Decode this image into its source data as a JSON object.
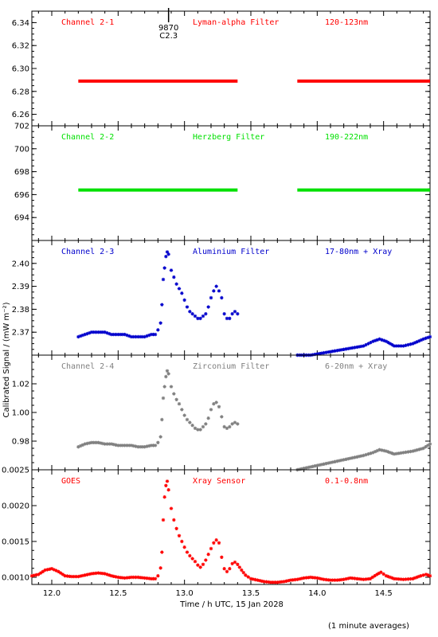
{
  "chart_data": {
    "type": "scatter",
    "xlabel": "Time / h UTC, 15 Jan 2028",
    "ylabel": "Calibrated Signal / (mW m⁻²)",
    "footnote": "(1 minute averages)",
    "xlim": [
      11.85,
      14.85
    ],
    "x_ticks": [
      "12.0",
      "12.5",
      "13.0",
      "13.5",
      "14.0",
      "14.5"
    ],
    "x_tick_values": [
      12.0,
      12.5,
      13.0,
      13.5,
      14.0,
      14.5
    ],
    "event_marker": {
      "x": 12.88,
      "labels": [
        "9870",
        "C2.3"
      ]
    },
    "panels": [
      {
        "channel": "Channel 2-1",
        "filter": "Lyman-alpha Filter",
        "band": "120-123nm",
        "color": "#ff0000",
        "ylim": [
          6.25,
          6.35
        ],
        "y_ticks": [
          "6.26",
          "6.28",
          "6.30",
          "6.32",
          "6.34"
        ],
        "y_tick_values": [
          6.26,
          6.28,
          6.3,
          6.32,
          6.34
        ],
        "series": [
          [
            12.2,
            6.289
          ],
          [
            13.4,
            6.289
          ],
          null,
          [
            13.85,
            6.289
          ],
          [
            14.85,
            6.289
          ]
        ],
        "style": "dense"
      },
      {
        "channel": "Channel 2-2",
        "filter": "Herzberg Filter",
        "band": "190-222nm",
        "color": "#00e000",
        "ylim": [
          692.0,
          702.0
        ],
        "y_ticks": [
          "694",
          "696",
          "698",
          "700",
          "702"
        ],
        "y_tick_values": [
          694,
          696,
          698,
          700,
          702
        ],
        "series": [
          [
            12.2,
            696.4
          ],
          [
            13.4,
            696.4
          ],
          null,
          [
            13.85,
            696.4
          ],
          [
            14.85,
            696.4
          ]
        ],
        "style": "dense"
      },
      {
        "channel": "Channel 2-3",
        "filter": "Aluminium Filter",
        "band": "17-80nm + Xray",
        "color": "#0000cc",
        "ylim": [
          2.36,
          2.41
        ],
        "y_ticks": [
          "2.37",
          "2.38",
          "2.39",
          "2.40"
        ],
        "y_tick_values": [
          2.37,
          2.38,
          2.39,
          2.4
        ],
        "series": [
          [
            12.2,
            2.368
          ],
          [
            12.25,
            2.369
          ],
          [
            12.3,
            2.37
          ],
          [
            12.35,
            2.37
          ],
          [
            12.4,
            2.37
          ],
          [
            12.45,
            2.369
          ],
          [
            12.5,
            2.369
          ],
          [
            12.55,
            2.369
          ],
          [
            12.6,
            2.368
          ],
          [
            12.65,
            2.368
          ],
          [
            12.7,
            2.368
          ],
          [
            12.75,
            2.369
          ],
          [
            12.78,
            2.369
          ],
          [
            12.8,
            2.371
          ],
          [
            12.82,
            2.374
          ],
          [
            12.83,
            2.382
          ],
          [
            12.84,
            2.393
          ],
          [
            12.85,
            2.398
          ],
          [
            12.86,
            2.403
          ],
          [
            12.87,
            2.405
          ],
          [
            12.88,
            2.404
          ],
          [
            12.9,
            2.397
          ],
          [
            12.92,
            2.394
          ],
          [
            12.94,
            2.391
          ],
          [
            12.96,
            2.389
          ],
          [
            12.98,
            2.387
          ],
          [
            13.0,
            2.384
          ],
          [
            13.02,
            2.381
          ],
          [
            13.04,
            2.379
          ],
          [
            13.06,
            2.378
          ],
          [
            13.08,
            2.377
          ],
          [
            13.1,
            2.376
          ],
          [
            13.12,
            2.376
          ],
          [
            13.14,
            2.377
          ],
          [
            13.16,
            2.378
          ],
          [
            13.18,
            2.381
          ],
          [
            13.2,
            2.385
          ],
          [
            13.22,
            2.388
          ],
          [
            13.24,
            2.39
          ],
          [
            13.26,
            2.388
          ],
          [
            13.28,
            2.385
          ],
          [
            13.3,
            2.378
          ],
          [
            13.32,
            2.376
          ],
          [
            13.34,
            2.376
          ],
          [
            13.36,
            2.378
          ],
          [
            13.38,
            2.379
          ],
          [
            13.4,
            2.378
          ],
          null,
          [
            13.85,
            2.36
          ],
          [
            13.95,
            2.36
          ],
          [
            14.05,
            2.361
          ],
          [
            14.15,
            2.362
          ],
          [
            14.25,
            2.363
          ],
          [
            14.35,
            2.364
          ],
          [
            14.42,
            2.366
          ],
          [
            14.47,
            2.367
          ],
          [
            14.52,
            2.366
          ],
          [
            14.58,
            2.364
          ],
          [
            14.65,
            2.364
          ],
          [
            14.72,
            2.365
          ],
          [
            14.8,
            2.367
          ],
          [
            14.85,
            2.368
          ]
        ],
        "style": "points"
      },
      {
        "channel": "Channel 2-4",
        "filter": "Zirconium Filter",
        "band": "6-20nm + Xray",
        "color": "#808080",
        "ylim": [
          0.96,
          1.04
        ],
        "y_ticks": [
          "0.98",
          "1.00",
          "1.02"
        ],
        "y_tick_values": [
          0.98,
          1.0,
          1.02
        ],
        "series": [
          [
            12.2,
            0.976
          ],
          [
            12.25,
            0.978
          ],
          [
            12.3,
            0.979
          ],
          [
            12.35,
            0.979
          ],
          [
            12.4,
            0.978
          ],
          [
            12.45,
            0.978
          ],
          [
            12.5,
            0.977
          ],
          [
            12.55,
            0.977
          ],
          [
            12.6,
            0.977
          ],
          [
            12.65,
            0.976
          ],
          [
            12.7,
            0.976
          ],
          [
            12.75,
            0.977
          ],
          [
            12.78,
            0.977
          ],
          [
            12.8,
            0.979
          ],
          [
            12.82,
            0.983
          ],
          [
            12.83,
            0.995
          ],
          [
            12.84,
            1.01
          ],
          [
            12.85,
            1.018
          ],
          [
            12.86,
            1.025
          ],
          [
            12.87,
            1.029
          ],
          [
            12.88,
            1.027
          ],
          [
            12.9,
            1.018
          ],
          [
            12.92,
            1.013
          ],
          [
            12.94,
            1.009
          ],
          [
            12.96,
            1.006
          ],
          [
            12.98,
            1.002
          ],
          [
            13.0,
            0.998
          ],
          [
            13.02,
            0.995
          ],
          [
            13.04,
            0.993
          ],
          [
            13.06,
            0.991
          ],
          [
            13.08,
            0.989
          ],
          [
            13.1,
            0.988
          ],
          [
            13.12,
            0.988
          ],
          [
            13.14,
            0.99
          ],
          [
            13.16,
            0.992
          ],
          [
            13.18,
            0.996
          ],
          [
            13.2,
            1.002
          ],
          [
            13.22,
            1.006
          ],
          [
            13.24,
            1.007
          ],
          [
            13.26,
            1.004
          ],
          [
            13.28,
            0.997
          ],
          [
            13.3,
            0.99
          ],
          [
            13.32,
            0.989
          ],
          [
            13.34,
            0.99
          ],
          [
            13.36,
            0.992
          ],
          [
            13.38,
            0.993
          ],
          [
            13.4,
            0.992
          ],
          null,
          [
            13.85,
            0.96
          ],
          [
            13.95,
            0.962
          ],
          [
            14.05,
            0.964
          ],
          [
            14.15,
            0.966
          ],
          [
            14.25,
            0.968
          ],
          [
            14.35,
            0.97
          ],
          [
            14.42,
            0.972
          ],
          [
            14.47,
            0.974
          ],
          [
            14.52,
            0.973
          ],
          [
            14.58,
            0.971
          ],
          [
            14.65,
            0.972
          ],
          [
            14.72,
            0.973
          ],
          [
            14.8,
            0.975
          ],
          [
            14.85,
            0.978
          ]
        ],
        "style": "points"
      },
      {
        "channel": "GOES",
        "filter": "Xray Sensor",
        "band": "0.1-0.8nm",
        "color": "#ff0000",
        "ylim": [
          0.0009,
          0.0025
        ],
        "y_ticks": [
          "0.0010",
          "0.0015",
          "0.0020",
          "0.0025"
        ],
        "y_tick_values": [
          0.001,
          0.0015,
          0.002,
          0.0025
        ],
        "series": [
          [
            11.85,
            0.00102
          ],
          [
            11.9,
            0.00104
          ],
          [
            11.95,
            0.0011
          ],
          [
            12.0,
            0.00112
          ],
          [
            12.05,
            0.00108
          ],
          [
            12.1,
            0.00102
          ],
          [
            12.15,
            0.00101
          ],
          [
            12.2,
            0.00101
          ],
          [
            12.25,
            0.00103
          ],
          [
            12.3,
            0.00105
          ],
          [
            12.35,
            0.00106
          ],
          [
            12.4,
            0.00105
          ],
          [
            12.45,
            0.00102
          ],
          [
            12.5,
            0.001
          ],
          [
            12.55,
            0.00099
          ],
          [
            12.6,
            0.001
          ],
          [
            12.65,
            0.001
          ],
          [
            12.7,
            0.00099
          ],
          [
            12.75,
            0.00098
          ],
          [
            12.78,
            0.00098
          ],
          [
            12.8,
            0.00102
          ],
          [
            12.82,
            0.00113
          ],
          [
            12.83,
            0.00135
          ],
          [
            12.84,
            0.0018
          ],
          [
            12.85,
            0.00212
          ],
          [
            12.86,
            0.00228
          ],
          [
            12.87,
            0.00234
          ],
          [
            12.88,
            0.00222
          ],
          [
            12.9,
            0.00196
          ],
          [
            12.92,
            0.0018
          ],
          [
            12.94,
            0.00168
          ],
          [
            12.96,
            0.00158
          ],
          [
            12.98,
            0.0015
          ],
          [
            13.0,
            0.00142
          ],
          [
            13.02,
            0.00135
          ],
          [
            13.04,
            0.0013
          ],
          [
            13.06,
            0.00126
          ],
          [
            13.08,
            0.00122
          ],
          [
            13.1,
            0.00117
          ],
          [
            13.12,
            0.00114
          ],
          [
            13.14,
            0.00118
          ],
          [
            13.16,
            0.00124
          ],
          [
            13.18,
            0.00132
          ],
          [
            13.2,
            0.0014
          ],
          [
            13.22,
            0.00148
          ],
          [
            13.24,
            0.00152
          ],
          [
            13.26,
            0.00148
          ],
          [
            13.28,
            0.00128
          ],
          [
            13.3,
            0.00112
          ],
          [
            13.32,
            0.00108
          ],
          [
            13.34,
            0.00112
          ],
          [
            13.36,
            0.00119
          ],
          [
            13.38,
            0.00121
          ],
          [
            13.4,
            0.00118
          ],
          [
            13.43,
            0.0011
          ],
          [
            13.46,
            0.00103
          ],
          [
            13.5,
            0.00098
          ],
          [
            13.55,
            0.00096
          ],
          [
            13.6,
            0.00094
          ],
          [
            13.65,
            0.00093
          ],
          [
            13.7,
            0.00093
          ],
          [
            13.75,
            0.00094
          ],
          [
            13.8,
            0.00096
          ],
          [
            13.85,
            0.00097
          ],
          [
            13.9,
            0.00099
          ],
          [
            13.95,
            0.001
          ],
          [
            14.0,
            0.00099
          ],
          [
            14.05,
            0.00097
          ],
          [
            14.1,
            0.00096
          ],
          [
            14.15,
            0.00096
          ],
          [
            14.2,
            0.00097
          ],
          [
            14.25,
            0.00099
          ],
          [
            14.3,
            0.00098
          ],
          [
            14.35,
            0.00097
          ],
          [
            14.4,
            0.00098
          ],
          [
            14.45,
            0.00104
          ],
          [
            14.48,
            0.00107
          ],
          [
            14.52,
            0.00102
          ],
          [
            14.58,
            0.00098
          ],
          [
            14.65,
            0.00097
          ],
          [
            14.72,
            0.00098
          ],
          [
            14.78,
            0.00102
          ],
          [
            14.82,
            0.00104
          ],
          [
            14.85,
            0.00102
          ]
        ],
        "style": "points"
      }
    ]
  }
}
